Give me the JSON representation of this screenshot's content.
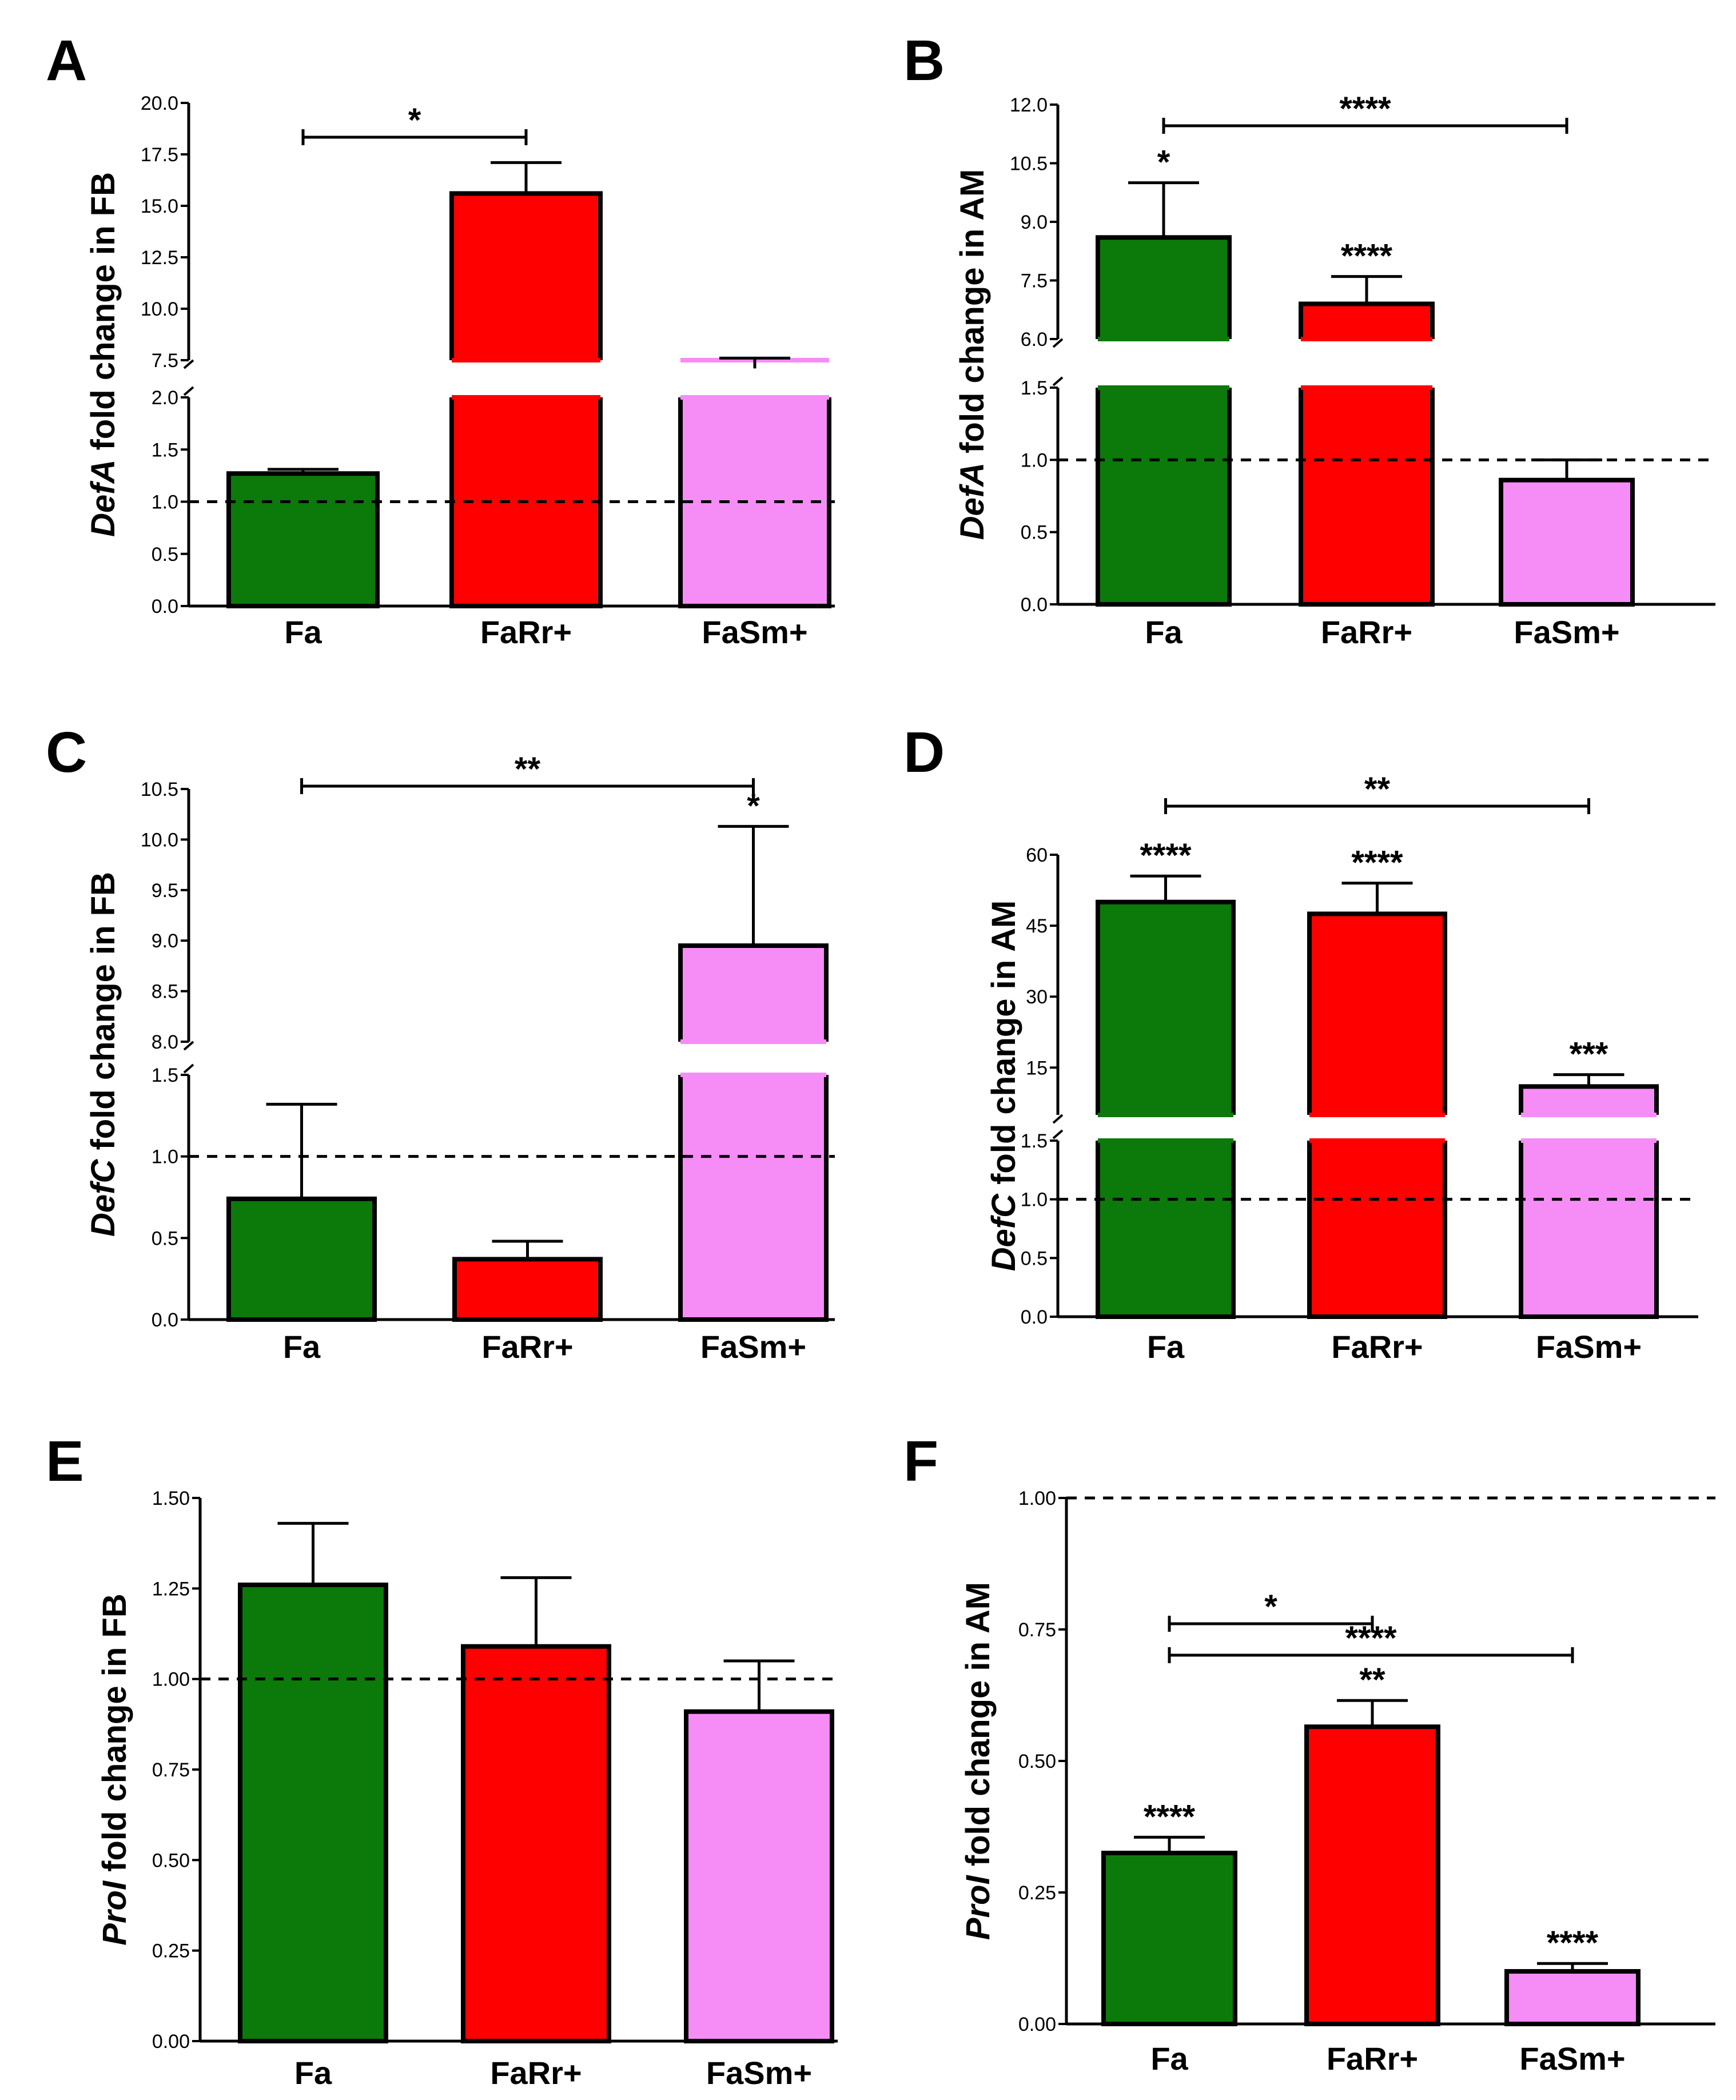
{
  "colors": {
    "Fa": "#0b7a0b",
    "FaRr+": "#ff0000",
    "FaSm+": "#f68cf6",
    "axis": "#000000"
  },
  "chart_data": [
    {
      "panel": "A",
      "type": "bar",
      "categories": [
        "Fa",
        "FaRr+",
        "FaSm+"
      ],
      "values": [
        1.27,
        15.6,
        7.1
      ],
      "errors": [
        0.04,
        1.5,
        0.5
      ],
      "ylabel_italic": "DefA",
      "ylabel_rest": " fold change in FB",
      "axis_break": true,
      "lower_range": [
        0,
        2.0
      ],
      "lower_ticks": [
        "0.0",
        "0.5",
        "1.0",
        "1.5",
        "2.0"
      ],
      "upper_range": [
        7.5,
        20.0
      ],
      "upper_ticks": [
        "7.5",
        "10.0",
        "12.5",
        "15.0",
        "17.5",
        "20.0"
      ],
      "reference_line": 1.0,
      "bar_labels": [
        "",
        "",
        ""
      ],
      "brackets": [
        {
          "from": 0,
          "to": 1,
          "label": "*"
        }
      ]
    },
    {
      "panel": "B",
      "type": "bar",
      "categories": [
        "Fa",
        "FaRr+",
        "FaSm+"
      ],
      "values": [
        8.6,
        6.9,
        0.86
      ],
      "errors": [
        1.4,
        0.7,
        0.14
      ],
      "ylabel_italic": "DefA",
      "ylabel_rest": " fold change in AM",
      "axis_break": true,
      "lower_range": [
        0,
        1.5
      ],
      "lower_ticks": [
        "0.0",
        "0.5",
        "1.0",
        "1.5"
      ],
      "upper_range": [
        6.0,
        12.0
      ],
      "upper_ticks": [
        "6.0",
        "7.5",
        "9.0",
        "10.5",
        "12.0"
      ],
      "reference_line": 1.0,
      "bar_labels": [
        "*",
        "****",
        ""
      ],
      "brackets": [
        {
          "from": 0,
          "to": 2,
          "label": "****"
        }
      ]
    },
    {
      "panel": "C",
      "type": "bar",
      "categories": [
        "Fa",
        "FaRr+",
        "FaSm+"
      ],
      "values": [
        0.74,
        0.37,
        8.95
      ],
      "errors": [
        0.58,
        0.11,
        1.18
      ],
      "ylabel_italic": "DefC",
      "ylabel_rest": " fold change in FB",
      "axis_break": true,
      "lower_range": [
        0,
        1.5
      ],
      "lower_ticks": [
        "0.0",
        "0.5",
        "1.0",
        "1.5"
      ],
      "upper_range": [
        8.0,
        10.5
      ],
      "upper_ticks": [
        "8.0",
        "8.5",
        "9.0",
        "9.5",
        "10.0",
        "10.5"
      ],
      "reference_line": 1.0,
      "bar_labels": [
        "",
        "",
        "*"
      ],
      "brackets": [
        {
          "from": 0,
          "to": 2,
          "label": "**"
        }
      ]
    },
    {
      "panel": "D",
      "type": "bar",
      "categories": [
        "Fa",
        "FaRr+",
        "FaSm+"
      ],
      "values": [
        50,
        47.5,
        11
      ],
      "errors": [
        5.5,
        6.5,
        2.5
      ],
      "ylabel_italic": "DefC",
      "ylabel_rest": " fold change in AM",
      "axis_break": true,
      "lower_range": [
        0,
        1.5
      ],
      "lower_ticks": [
        "0.0",
        "0.5",
        "1.0",
        "1.5"
      ],
      "upper_range": [
        5,
        60
      ],
      "upper_ticks": [
        "15",
        "30",
        "45",
        "60"
      ],
      "upper_tick_values": [
        15,
        30,
        45,
        60
      ],
      "reference_line": 1.0,
      "bar_labels": [
        "****",
        "****",
        "***"
      ],
      "brackets": [
        {
          "from": 0,
          "to": 2,
          "label": "**"
        }
      ]
    },
    {
      "panel": "E",
      "type": "bar",
      "categories": [
        "Fa",
        "FaRr+",
        "FaSm+"
      ],
      "values": [
        1.26,
        1.09,
        0.91
      ],
      "errors": [
        0.17,
        0.19,
        0.14
      ],
      "ylabel_italic": "ProI",
      "ylabel_rest": " fold change in FB",
      "axis_break": false,
      "range": [
        0,
        1.5
      ],
      "ticks": [
        "0.00",
        "0.25",
        "0.50",
        "0.75",
        "1.00",
        "1.25",
        "1.50"
      ],
      "reference_line": 1.0,
      "bar_labels": [
        "",
        "",
        ""
      ],
      "brackets": []
    },
    {
      "panel": "F",
      "type": "bar",
      "categories": [
        "Fa",
        "FaRr+",
        "FaSm+"
      ],
      "values": [
        0.325,
        0.565,
        0.1
      ],
      "errors": [
        0.03,
        0.05,
        0.015
      ],
      "ylabel_italic": "ProI",
      "ylabel_rest": " fold change in AM",
      "axis_break": false,
      "range": [
        0,
        1.0
      ],
      "ticks": [
        "0.00",
        "0.25",
        "0.50",
        "0.75",
        "1.00"
      ],
      "reference_line": 1.0,
      "bar_labels": [
        "****",
        "**",
        "****"
      ],
      "brackets": [
        {
          "from": 0,
          "to": 1,
          "label": "*"
        },
        {
          "from": 0,
          "to": 2,
          "label": "****"
        }
      ]
    }
  ]
}
